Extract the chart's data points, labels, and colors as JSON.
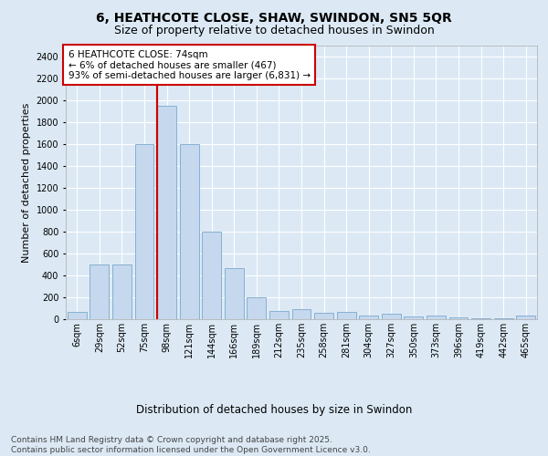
{
  "title_line1": "6, HEATHCOTE CLOSE, SHAW, SWINDON, SN5 5QR",
  "title_line2": "Size of property relative to detached houses in Swindon",
  "xlabel": "Distribution of detached houses by size in Swindon",
  "ylabel": "Number of detached properties",
  "categories": [
    "6sqm",
    "29sqm",
    "52sqm",
    "75sqm",
    "98sqm",
    "121sqm",
    "144sqm",
    "166sqm",
    "189sqm",
    "212sqm",
    "235sqm",
    "258sqm",
    "281sqm",
    "304sqm",
    "327sqm",
    "350sqm",
    "373sqm",
    "396sqm",
    "419sqm",
    "442sqm",
    "465sqm"
  ],
  "values": [
    70,
    500,
    500,
    1600,
    1950,
    1600,
    800,
    470,
    200,
    75,
    95,
    55,
    70,
    30,
    50,
    25,
    30,
    15,
    8,
    5,
    30
  ],
  "bar_color": "#c5d8ee",
  "bar_edge_color": "#7aa8cc",
  "vline_color": "#cc0000",
  "vline_x": 3.55,
  "annotation_text": "6 HEATHCOTE CLOSE: 74sqm\n← 6% of detached houses are smaller (467)\n93% of semi-detached houses are larger (6,831) →",
  "annotation_box_color": "white",
  "annotation_box_edge_color": "#cc0000",
  "ylim": [
    0,
    2500
  ],
  "yticks": [
    0,
    200,
    400,
    600,
    800,
    1000,
    1200,
    1400,
    1600,
    1800,
    2000,
    2200,
    2400
  ],
  "background_color": "#dce9f5",
  "plot_bg_color": "#dce9f5",
  "grid_color": "white",
  "footer_text": "Contains HM Land Registry data © Crown copyright and database right 2025.\nContains public sector information licensed under the Open Government Licence v3.0.",
  "title_fontsize": 10,
  "subtitle_fontsize": 9,
  "ylabel_fontsize": 8,
  "xlabel_fontsize": 8.5,
  "tick_fontsize": 7,
  "annot_fontsize": 7.5,
  "footer_fontsize": 6.5
}
